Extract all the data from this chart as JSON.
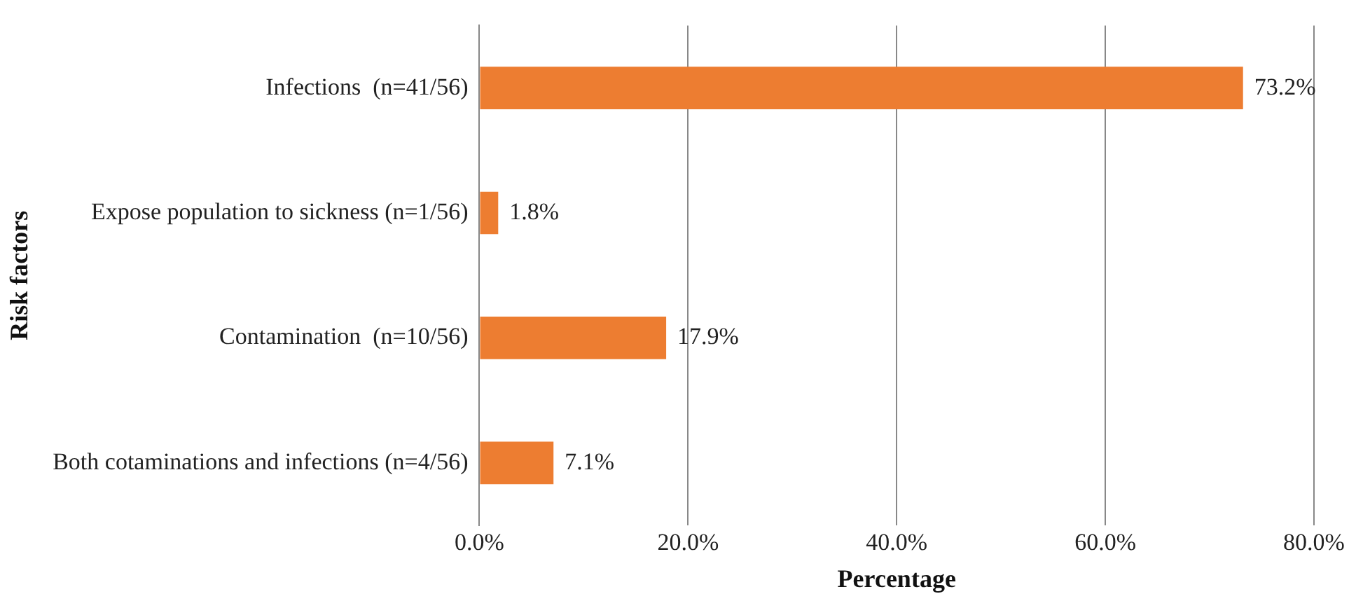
{
  "chart_data": {
    "type": "bar",
    "orientation": "horizontal",
    "xlabel": "Percentage",
    "ylabel": "Risk factors",
    "categories": [
      "Infections  (n=41/56)",
      "Expose population to sickness (n=1/56)",
      "Contamination  (n=10/56)",
      "Both cotaminations and infections (n=4/56)"
    ],
    "values": [
      73.2,
      1.8,
      17.9,
      7.1
    ],
    "color": "#ed7d31",
    "value_labels": [
      "73.2%",
      "1.8%",
      "17.9%",
      "7.1%"
    ],
    "xlim": [
      0,
      80
    ],
    "xticks": [
      {
        "value": 0,
        "label": "0.0%"
      },
      {
        "value": 20,
        "label": "20.0%"
      },
      {
        "value": 40,
        "label": "40.0%"
      },
      {
        "value": 60,
        "label": "60.0%"
      },
      {
        "value": 80,
        "label": "80.0%"
      }
    ],
    "grid": "x",
    "legend": false
  }
}
